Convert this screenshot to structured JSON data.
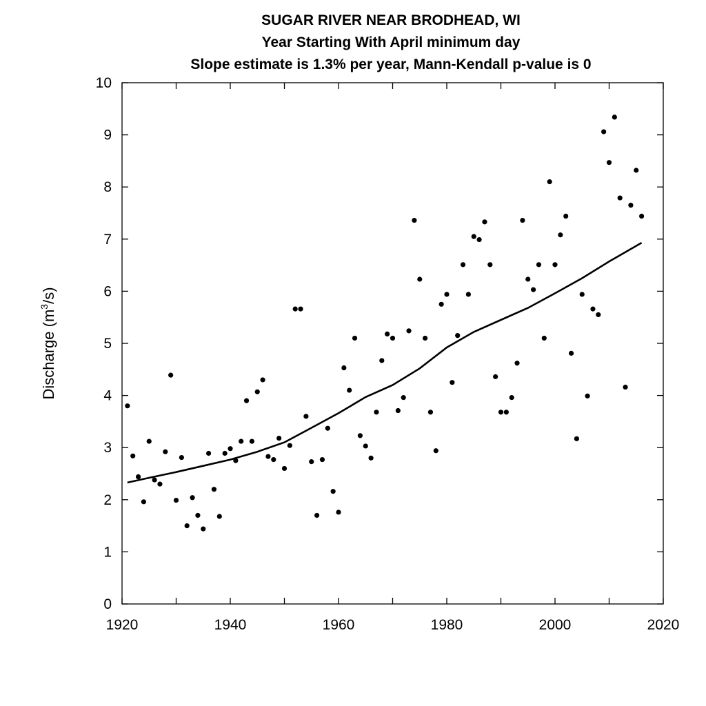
{
  "chart_data": {
    "type": "scatter",
    "title": "SUGAR RIVER NEAR BRODHEAD, WI",
    "subtitle": "Year Starting With April  minimum day",
    "subtitle2": "Slope estimate is 1.3% per year, Mann-Kendall p-value is 0",
    "xlabel": "",
    "ylabel": "Discharge (m",
    "ylabel_sup": "3",
    "ylabel_end": "/s)",
    "xlim": [
      1920,
      2020
    ],
    "ylim": [
      0,
      10
    ],
    "x_ticks": [
      1920,
      1940,
      1960,
      1980,
      2000,
      2020
    ],
    "x_minor_ticks": [
      1930,
      1950,
      1970,
      1990,
      2010
    ],
    "y_ticks": [
      0,
      1,
      2,
      3,
      4,
      5,
      6,
      7,
      8,
      9,
      10
    ],
    "grid": false,
    "points": [
      [
        1921,
        3.8
      ],
      [
        1922,
        2.84
      ],
      [
        1923,
        2.44
      ],
      [
        1924,
        1.96
      ],
      [
        1925,
        3.12
      ],
      [
        1926,
        2.38
      ],
      [
        1927,
        2.3
      ],
      [
        1928,
        2.92
      ],
      [
        1929,
        4.39
      ],
      [
        1930,
        1.99
      ],
      [
        1931,
        2.81
      ],
      [
        1932,
        1.5
      ],
      [
        1933,
        2.04
      ],
      [
        1934,
        1.7
      ],
      [
        1935,
        1.44
      ],
      [
        1936,
        2.89
      ],
      [
        1937,
        2.2
      ],
      [
        1938,
        1.68
      ],
      [
        1939,
        2.89
      ],
      [
        1940,
        2.98
      ],
      [
        1941,
        2.75
      ],
      [
        1942,
        3.12
      ],
      [
        1943,
        3.9
      ],
      [
        1944,
        3.12
      ],
      [
        1945,
        4.07
      ],
      [
        1946,
        4.3
      ],
      [
        1947,
        2.83
      ],
      [
        1948,
        2.77
      ],
      [
        1949,
        3.18
      ],
      [
        1950,
        2.6
      ],
      [
        1951,
        3.04
      ],
      [
        1952,
        5.66
      ],
      [
        1953,
        5.66
      ],
      [
        1954,
        3.6
      ],
      [
        1955,
        2.73
      ],
      [
        1956,
        1.7
      ],
      [
        1957,
        2.77
      ],
      [
        1958,
        3.37
      ],
      [
        1959,
        2.16
      ],
      [
        1960,
        1.76
      ],
      [
        1961,
        4.53
      ],
      [
        1962,
        4.1
      ],
      [
        1963,
        5.1
      ],
      [
        1964,
        3.23
      ],
      [
        1965,
        3.03
      ],
      [
        1966,
        2.8
      ],
      [
        1967,
        3.68
      ],
      [
        1968,
        4.67
      ],
      [
        1969,
        5.18
      ],
      [
        1970,
        5.1
      ],
      [
        1971,
        3.71
      ],
      [
        1972,
        3.96
      ],
      [
        1973,
        5.24
      ],
      [
        1974,
        7.36
      ],
      [
        1975,
        6.23
      ],
      [
        1976,
        5.1
      ],
      [
        1977,
        3.68
      ],
      [
        1978,
        2.94
      ],
      [
        1979,
        5.75
      ],
      [
        1980,
        5.94
      ],
      [
        1981,
        4.25
      ],
      [
        1982,
        5.15
      ],
      [
        1983,
        6.51
      ],
      [
        1984,
        5.94
      ],
      [
        1985,
        7.05
      ],
      [
        1986,
        6.99
      ],
      [
        1987,
        7.33
      ],
      [
        1988,
        6.51
      ],
      [
        1989,
        4.36
      ],
      [
        1990,
        3.68
      ],
      [
        1991,
        3.68
      ],
      [
        1992,
        3.96
      ],
      [
        1993,
        4.62
      ],
      [
        1994,
        7.36
      ],
      [
        1995,
        6.23
      ],
      [
        1996,
        6.03
      ],
      [
        1997,
        6.51
      ],
      [
        1998,
        5.1
      ],
      [
        1999,
        8.1
      ],
      [
        2000,
        6.51
      ],
      [
        2001,
        7.08
      ],
      [
        2002,
        7.44
      ],
      [
        2003,
        4.81
      ],
      [
        2004,
        3.17
      ],
      [
        2005,
        5.94
      ],
      [
        2006,
        3.99
      ],
      [
        2007,
        5.66
      ],
      [
        2008,
        5.55
      ],
      [
        2009,
        9.06
      ],
      [
        2010,
        8.47
      ],
      [
        2011,
        9.34
      ],
      [
        2012,
        7.79
      ],
      [
        2013,
        4.16
      ],
      [
        2014,
        7.65
      ],
      [
        2015,
        8.32
      ],
      [
        2016,
        7.44
      ]
    ],
    "trend": [
      [
        1921,
        2.33
      ],
      [
        1925,
        2.42
      ],
      [
        1930,
        2.53
      ],
      [
        1935,
        2.65
      ],
      [
        1940,
        2.77
      ],
      [
        1945,
        2.92
      ],
      [
        1950,
        3.1
      ],
      [
        1955,
        3.38
      ],
      [
        1960,
        3.66
      ],
      [
        1965,
        3.97
      ],
      [
        1970,
        4.2
      ],
      [
        1975,
        4.52
      ],
      [
        1980,
        4.92
      ],
      [
        1985,
        5.22
      ],
      [
        1990,
        5.45
      ],
      [
        1995,
        5.68
      ],
      [
        2000,
        5.96
      ],
      [
        2005,
        6.25
      ],
      [
        2010,
        6.57
      ],
      [
        2016,
        6.93
      ]
    ]
  }
}
